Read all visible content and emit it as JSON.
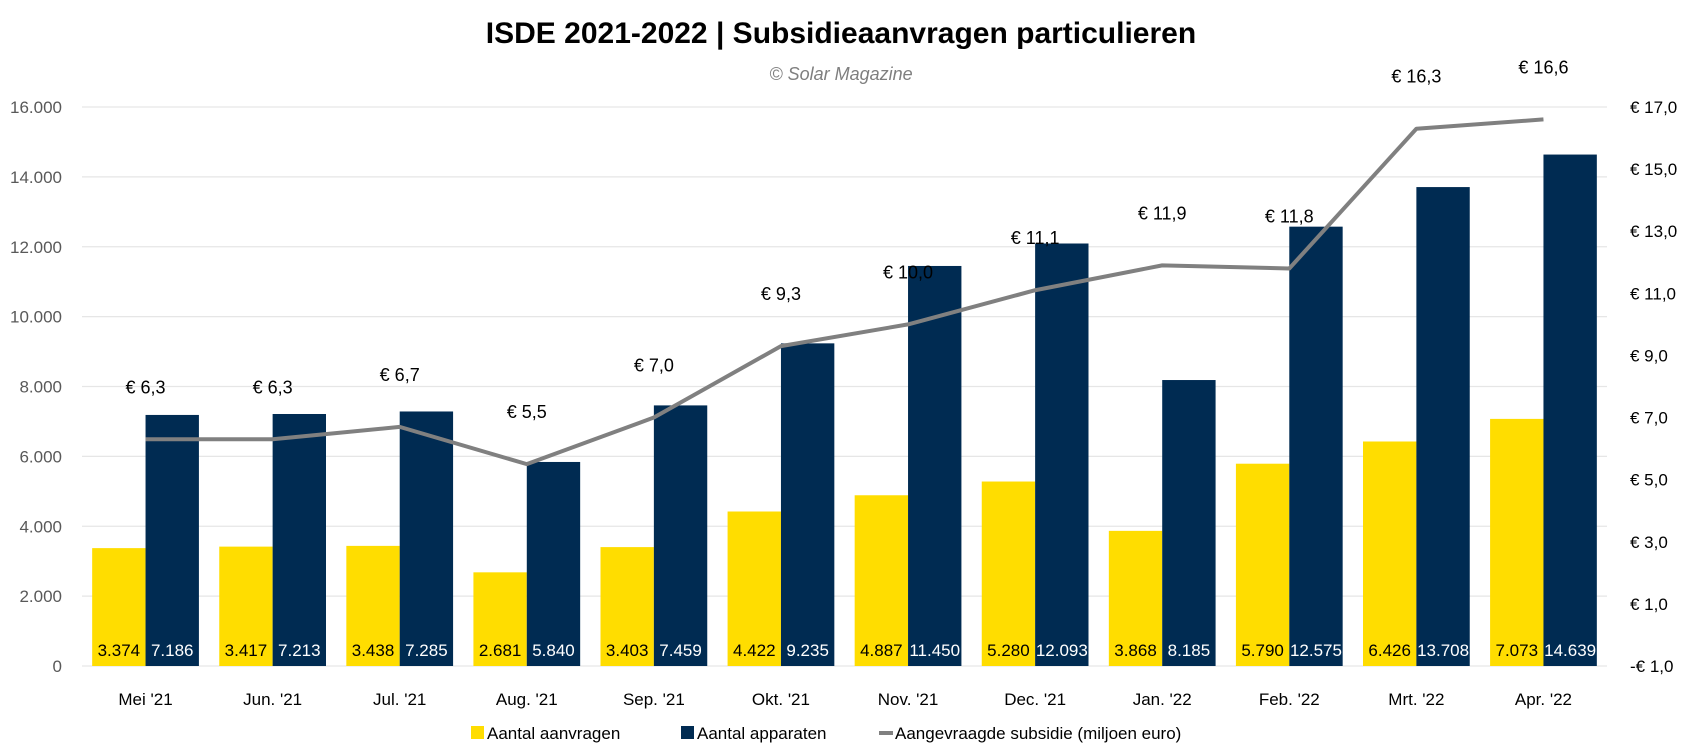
{
  "chart_data": {
    "type": "bar",
    "title": "ISDE 2021-2022 | Subsidieaanvragen particulieren",
    "subtitle": "© Solar Magazine",
    "categories": [
      "Mei '21",
      "Jun. '21",
      "Jul. '21",
      "Aug. '21",
      "Sep. '21",
      "Okt. '21",
      "Nov. '21",
      "Dec. '21",
      "Jan. '22",
      "Feb. '22",
      "Mrt. '22",
      "Apr. '22"
    ],
    "series": [
      {
        "name": "Aantal aanvragen",
        "type": "bar",
        "axis": "left",
        "color": "#FFDD00",
        "label_color": "#000000",
        "values": [
          3374,
          3417,
          3438,
          2681,
          3403,
          4422,
          4887,
          5280,
          3868,
          5790,
          6426,
          7073
        ],
        "labels": [
          "3.374",
          "3.417",
          "3.438",
          "2.681",
          "3.403",
          "4.422",
          "4.887",
          "5.280",
          "3.868",
          "5.790",
          "6.426",
          "7.073"
        ]
      },
      {
        "name": "Aantal apparaten",
        "type": "bar",
        "axis": "left",
        "color": "#002B52",
        "label_color": "#FFFFFF",
        "values": [
          7186,
          7213,
          7285,
          5840,
          7459,
          9235,
          11450,
          12093,
          8185,
          12575,
          13708,
          14639
        ],
        "labels": [
          "7.186",
          "7.213",
          "7.285",
          "5.840",
          "7.459",
          "9.235",
          "11.450",
          "12.093",
          "8.185",
          "12.575",
          "13.708",
          "14.639"
        ]
      },
      {
        "name": "Aangevraagde subsidie (miljoen euro)",
        "type": "line",
        "axis": "right",
        "color": "#808080",
        "values": [
          6.3,
          6.3,
          6.7,
          5.5,
          7.0,
          9.3,
          10.0,
          11.1,
          11.9,
          11.8,
          16.3,
          16.6
        ],
        "labels": [
          "€ 6,3",
          "€ 6,3",
          "€ 6,7",
          "€ 5,5",
          "€ 7,0",
          "€ 9,3",
          "€ 10,0",
          "€ 11,1",
          "€ 11,9",
          "€ 11,8",
          "€ 16,3",
          "€ 16,6"
        ]
      }
    ],
    "y_left": {
      "ylim": [
        0,
        16000
      ],
      "ticks": [
        0,
        2000,
        4000,
        6000,
        8000,
        10000,
        12000,
        14000,
        16000
      ],
      "tick_labels": [
        "0",
        "2.000",
        "4.000",
        "6.000",
        "8.000",
        "10.000",
        "12.000",
        "14.000",
        "16.000"
      ]
    },
    "y_right": {
      "ylim": [
        -1.0,
        17.0
      ],
      "ticks": [
        -1,
        1,
        3,
        5,
        7,
        9,
        11,
        13,
        15,
        17
      ],
      "tick_labels": [
        "-€ 1,0",
        "€ 1,0",
        "€ 3,0",
        "€ 5,0",
        "€ 7,0",
        "€ 9,0",
        "€ 11,0",
        "€ 13,0",
        "€ 15,0",
        "€ 17,0"
      ]
    },
    "xlabel": "",
    "ylabel": "",
    "grid": true,
    "grid_color": "#E6E6E6",
    "legend_position": "bottom"
  }
}
